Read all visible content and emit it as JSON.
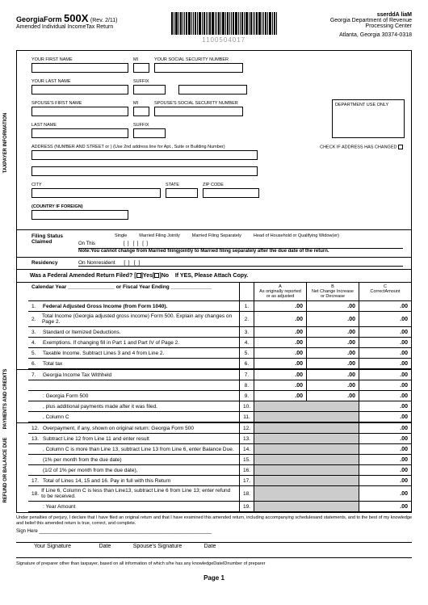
{
  "header": {
    "state": "Georgia",
    "form_word": "Form",
    "form_number": "500X",
    "revision": "(Rev. 2/11)",
    "subtitle": "Amended Individual IncomeTax Return",
    "barcode_number": "1100504017",
    "mail_label": "sserddA liaM",
    "dept": "Georgia Department of Revenue",
    "center": "Processing Center",
    "address": "Atlanta, Georgia 30374-0318"
  },
  "taxpayer": {
    "first_name_label": "YOUR FIRST NAME",
    "mi_label": "MI",
    "ssn_label": "YOUR SOCIAL SECURITY NUMBER",
    "last_name_label": "YOUR LAST NAME",
    "suffix_label": "SUFFIX",
    "spouse_first_label": "SPOUSE'S FIRST NAME",
    "spouse_mi_label": "MI",
    "spouse_ssn_label": "SPOUSE'S SOCIAL SECURITY NUMBER",
    "spouse_last_label": "LAST NAME",
    "spouse_suffix_label": "SUFFIX",
    "address_label": "ADDRESS (NUMBER AND STREET or  ) (Use 2nd address line for Apt., Suite or Building Number)",
    "check_changed": "CHECK IF ADDRESS HAS CHANGED",
    "dept_use": "DEPARTMENT USE ONLY",
    "city_label": "CITY",
    "state_label": "STATE",
    "zip_label": "ZIP CODE",
    "country_label": "(COUNTRY IF FOREIGN)",
    "vert_label": "TAXPAYER INFORMATION"
  },
  "filing": {
    "heading": "Filing Status Claimed",
    "on_this": "On This",
    "options": [
      "Single",
      "Married Filing Jointly",
      "Married Filing Separately",
      "Head of Household or Qualifying Widow(er)"
    ],
    "note": "Note:You cannot change from Married filingjointly to Married filing separately after the due date of the return.",
    "residency_label": "Residency",
    "residency_on": "On",
    "nonresident": "Nonresident"
  },
  "amended": {
    "question": "Was a Federal Amended Return Filed?",
    "yes": "Yes",
    "no": "No",
    "attach": "If YES, Please Attach Copy."
  },
  "columns": {
    "calendar": "Calendar Year ________________ or Fiscal Year Ending ______________",
    "a": "A",
    "a_sub": "As originally reported or as adjusted",
    "b": "B",
    "b_sub": "Net Change Increase or Decrease",
    "c": "C",
    "c_sub": "CorrectAmount"
  },
  "lines": [
    {
      "n": "1.",
      "desc": "Federal Adjusted Gross Income (from Form 1040).",
      "num": "1.",
      "a": ".00",
      "b": ".00",
      "c": ".00",
      "bold": true
    },
    {
      "n": "2.",
      "desc": "Total Income (Georgia adjusted gross income) Form 500. Explain any changes on Page 2.",
      "num": "2.",
      "a": ".00",
      "b": ".00",
      "c": ".00"
    },
    {
      "n": "3.",
      "desc": "Standard or Itemized Deductions.",
      "num": "3.",
      "a": ".00",
      "b": ".00",
      "c": ".00"
    },
    {
      "n": "4.",
      "desc": "Exemptions. If changing fill in Part 1 and Part IV of Page 2.",
      "num": "4.",
      "a": ".00",
      "b": ".00",
      "c": ".00"
    },
    {
      "n": "5.",
      "desc": "Taxable Income. Subtract Lines 3 and 4 from Line 2.",
      "num": "5.",
      "a": ".00",
      "b": ".00",
      "c": ".00"
    },
    {
      "n": "6.",
      "desc": "Total tax",
      "num": "6.",
      "a": ".00",
      "b": ".00",
      "c": ".00"
    }
  ],
  "payments_label": "PAYMENTS AND CREDITS",
  "payments_lines": [
    {
      "n": "7.",
      "desc": "Georgia Income Tax Withheld",
      "num": "7.",
      "a": ".00",
      "b": ".00",
      "c": ".00"
    },
    {
      "n": "",
      "desc": "",
      "num": "8.",
      "a": ".00",
      "b": ".00",
      "c": ".00"
    },
    {
      "n": "",
      "desc": ": Georgia Form 500",
      "num": "9.",
      "a": ".00",
      "b": ".00",
      "c": ".00"
    },
    {
      "n": "",
      "desc": ", plus additional payments made after it was filed.",
      "num": "10.",
      "grey_ab": true,
      "c": ".00"
    },
    {
      "n": "",
      "desc": ", Column C",
      "num": "11.",
      "grey_ab": true,
      "c": ".00"
    }
  ],
  "refund_label": "REFUND OR BALANCE DUE",
  "refund_lines": [
    {
      "n": "12.",
      "desc": "Overpayment, if any, shown on original return:  Georgia Form 500",
      "num": "12.",
      "grey_ab": true,
      "c": ".00"
    },
    {
      "n": "13.",
      "desc": "Subtract Line 12 from Line 11 and enter result",
      "num": "13.",
      "grey_ab": true,
      "c": ".00"
    },
    {
      "n": "",
      "desc": ", Column C is more than Line 13, subtract Line 13 from Line 6, enter Balance Due.",
      "num": "14.",
      "grey_ab": true,
      "c": ".00"
    },
    {
      "n": "",
      "desc": "(1% per month from the due date)",
      "num": "15.",
      "grey_ab": true,
      "c": ".00"
    },
    {
      "n": "",
      "desc": "(1/2 of 1% per month from the due date),",
      "num": "16.",
      "grey_ab": true,
      "c": ".00"
    },
    {
      "n": "17.",
      "desc": "Total of Lines 14, 15 and 16. Pay in full with this Return",
      "num": "17.",
      "grey_ab": true,
      "c": ".00"
    },
    {
      "n": "18.",
      "desc": "If Line 6, Column C is less than Line13, subtract Line 6 from Line 13; enter refund to be received.",
      "num": "18.",
      "grey_ab": true,
      "c": ".00"
    },
    {
      "n": "",
      "desc": ":  Year                                                          Amount",
      "num": "19.",
      "grey_ab": true,
      "c": ".00"
    }
  ],
  "perjury": "Under penalties of perjury, I declare that I have filed an original return and that I have examined this amended return, including accompanying schedulesand statements, and to the best of my knowledge and belief this amended return is true, correct, and complete.",
  "sign": {
    "here": "Sign Here",
    "your_sig": "Your Signature",
    "date": "Date",
    "spouse_sig": "Spouse's Signature",
    "date2": "Date"
  },
  "preparer": "Signature of preparer other than taxpayer, based on all information of which s/he has any knowledgeDateIDnumber of preparer",
  "page": "Page 1"
}
